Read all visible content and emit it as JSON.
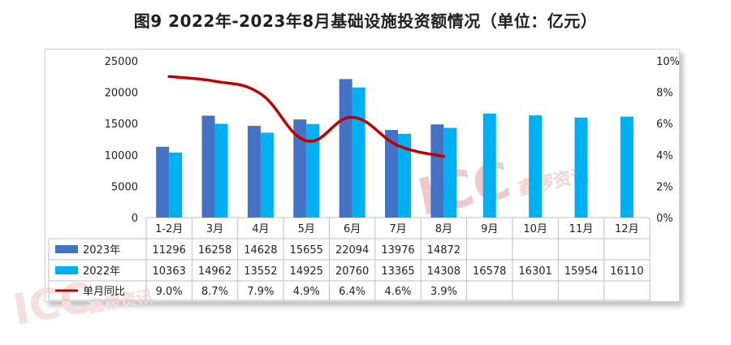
{
  "title": "图9  2022年-2023年8月基础设施投资额情况（单位：亿元）",
  "watermark": {
    "brand": "ICC",
    "sub": "鑫椤资讯"
  },
  "colors": {
    "s2023": "#4472c4",
    "s2022": "#00b0f0",
    "line": "#c00000",
    "grid": "#d9d9d9",
    "border": "#bfbfbf"
  },
  "chart_data": {
    "type": "bar",
    "categories": [
      "1-2月",
      "3月",
      "4月",
      "5月",
      "6月",
      "7月",
      "8月",
      "9月",
      "10月",
      "11月",
      "12月"
    ],
    "series": [
      {
        "name": "2023年",
        "type": "bar",
        "values": [
          11296,
          16258,
          14628,
          15655,
          22094,
          13976,
          14872,
          null,
          null,
          null,
          null
        ]
      },
      {
        "name": "2022年",
        "type": "bar",
        "values": [
          10363,
          14962,
          13552,
          14925,
          20760,
          13365,
          14308,
          16578,
          16301,
          15954,
          16110
        ]
      },
      {
        "name": "单月同比",
        "type": "line",
        "axis": "right",
        "values": [
          9.0,
          8.7,
          7.9,
          4.9,
          6.4,
          4.6,
          3.9,
          null,
          null,
          null,
          null
        ],
        "labels": [
          "9.0%",
          "8.7%",
          "7.9%",
          "4.9%",
          "6.4%",
          "4.6%",
          "3.9%",
          "",
          "",
          "",
          ""
        ]
      }
    ],
    "y_left": {
      "min": 0,
      "max": 25000,
      "ticks": [
        "0",
        "5000",
        "10000",
        "15000",
        "20000",
        "25000"
      ]
    },
    "y_right": {
      "min": 0,
      "max": 10,
      "ticks": [
        "0%",
        "2%",
        "4%",
        "6%",
        "8%",
        "10%"
      ]
    },
    "xlabel": "",
    "ylabel": "",
    "table_rows": [
      {
        "label": "2023年",
        "values": [
          "11296",
          "16258",
          "14628",
          "15655",
          "22094",
          "13976",
          "14872",
          "",
          "",
          "",
          ""
        ]
      },
      {
        "label": "2022年",
        "values": [
          "10363",
          "14962",
          "13552",
          "14925",
          "20760",
          "13365",
          "14308",
          "16578",
          "16301",
          "15954",
          "16110"
        ]
      },
      {
        "label": "单月同比",
        "values": [
          "9.0%",
          "8.7%",
          "7.9%",
          "4.9%",
          "6.4%",
          "4.6%",
          "3.9%",
          "",
          "",
          "",
          ""
        ]
      }
    ]
  }
}
